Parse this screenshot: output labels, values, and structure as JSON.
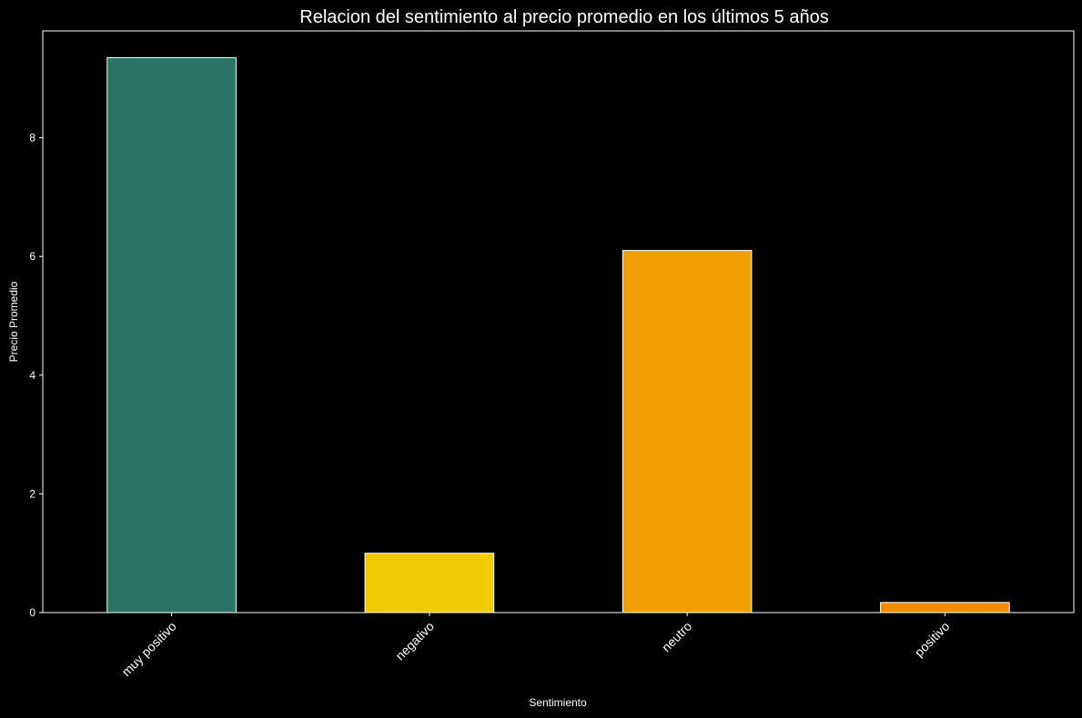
{
  "chart_data": {
    "type": "bar",
    "title": "Relacion del sentimiento al precio promedio en los últimos 5 años",
    "xlabel": "Sentimiento",
    "ylabel": "Precio Promedio",
    "categories": [
      "muy positivo",
      "negativo",
      "neutro",
      "positivo"
    ],
    "values": [
      9.35,
      1.0,
      6.1,
      0.17
    ],
    "colors": [
      "#2a7465",
      "#f0cb05",
      "#f0a005",
      "#f08c05"
    ],
    "bar_edge_color": "#ffffff",
    "background": "#000000",
    "ylim": [
      0,
      9.8
    ],
    "yticks": [
      0,
      2,
      4,
      6,
      8
    ],
    "ytick_labels": [
      "0",
      "2",
      "4",
      "6",
      "8"
    ],
    "xtick_rotation": 45,
    "grid": false,
    "legend": "none"
  }
}
